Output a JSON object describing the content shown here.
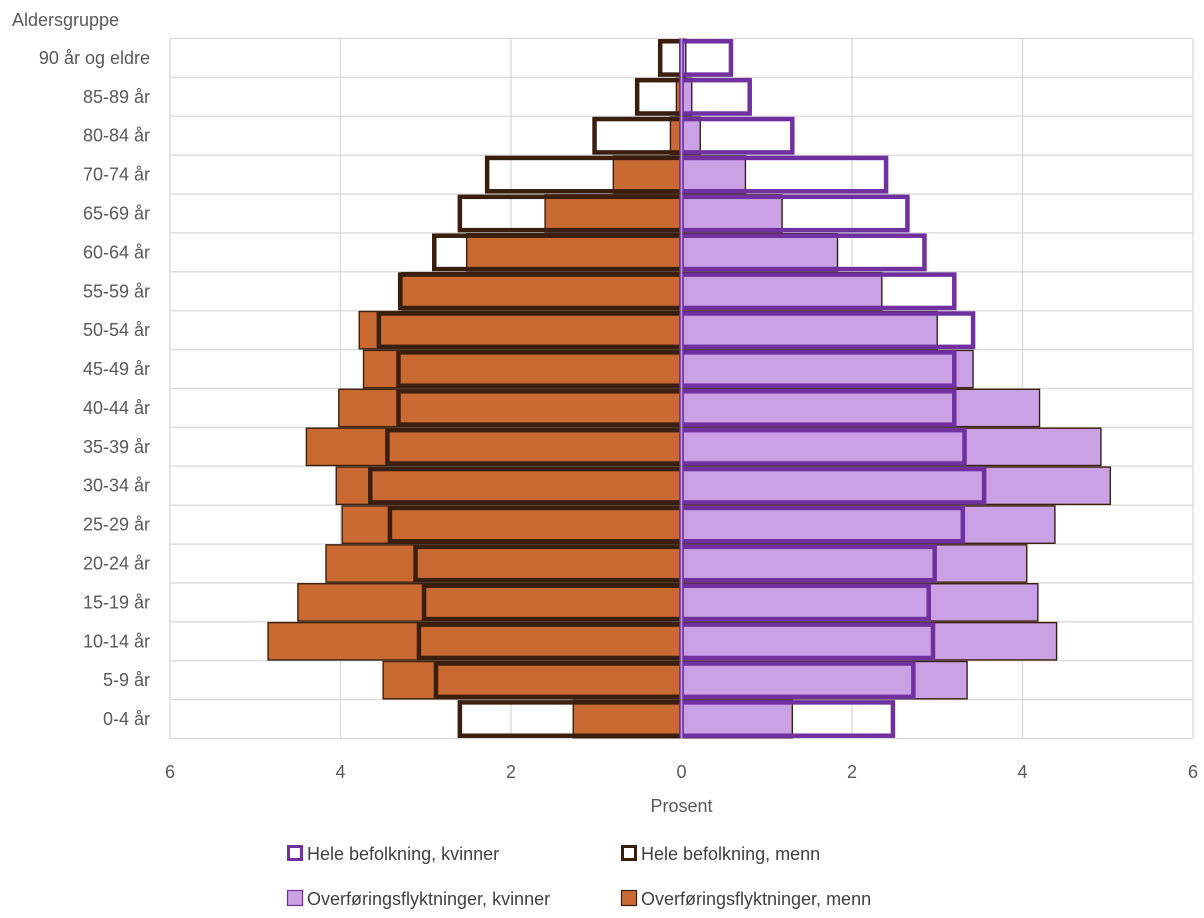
{
  "chart_data": {
    "type": "bar",
    "orientation": "horizontal",
    "subtype": "population-pyramid",
    "ylabel": "Aldersgruppe",
    "xlabel": "Prosent",
    "categories": [
      "90 år og eldre",
      "85-89 år",
      "80-84 år",
      "70-74 år",
      "65-69 år",
      "60-64 år",
      "55-59 år",
      "50-54 år",
      "45-49 år",
      "40-44 år",
      "35-39 år",
      "30-34 år",
      "25-29 år",
      "20-24 år",
      "15-19 år",
      "10-14 år",
      "5-9 år",
      "0-4 år"
    ],
    "xlim": [
      -6,
      6
    ],
    "xticks": [
      -6,
      -4,
      -2,
      0,
      2,
      4,
      6
    ],
    "xtick_labels": [
      "6",
      "4",
      "2",
      "0",
      "2",
      "4",
      "6"
    ],
    "grid": "vertical",
    "legend_position": "bottom",
    "series": [
      {
        "name": "Hele befolkning, kvinner",
        "style": "outline",
        "color": "#7030A0",
        "values": [
          0.58,
          0.8,
          1.3,
          2.4,
          2.65,
          2.85,
          3.2,
          3.42,
          3.2,
          3.2,
          3.32,
          3.55,
          3.3,
          2.97,
          2.9,
          2.95,
          2.72,
          2.48
        ]
      },
      {
        "name": "Hele befolkning, menn",
        "style": "outline",
        "color": "#3B1F0E",
        "values": [
          -0.25,
          -0.52,
          -1.02,
          -2.28,
          -2.6,
          -2.9,
          -3.3,
          -3.55,
          -3.32,
          -3.32,
          -3.45,
          -3.65,
          -3.42,
          -3.12,
          -3.02,
          -3.08,
          -2.88,
          -2.6
        ]
      },
      {
        "name": "Overføringsflyktninger, kvinner",
        "style": "fill",
        "color": "#C9A1E4",
        "values": [
          0.05,
          0.12,
          0.22,
          0.75,
          1.18,
          1.83,
          2.35,
          3.0,
          3.42,
          4.2,
          4.92,
          5.03,
          4.38,
          4.05,
          4.18,
          4.4,
          3.35,
          1.3
        ]
      },
      {
        "name": "Overføringsflyktninger, menn",
        "style": "fill",
        "color": "#C96A33",
        "values": [
          -0.02,
          -0.06,
          -0.13,
          -0.8,
          -1.6,
          -2.52,
          -3.28,
          -3.78,
          -3.73,
          -4.02,
          -4.4,
          -4.05,
          -3.98,
          -4.17,
          -4.5,
          -4.85,
          -3.5,
          -1.27
        ]
      }
    ]
  }
}
